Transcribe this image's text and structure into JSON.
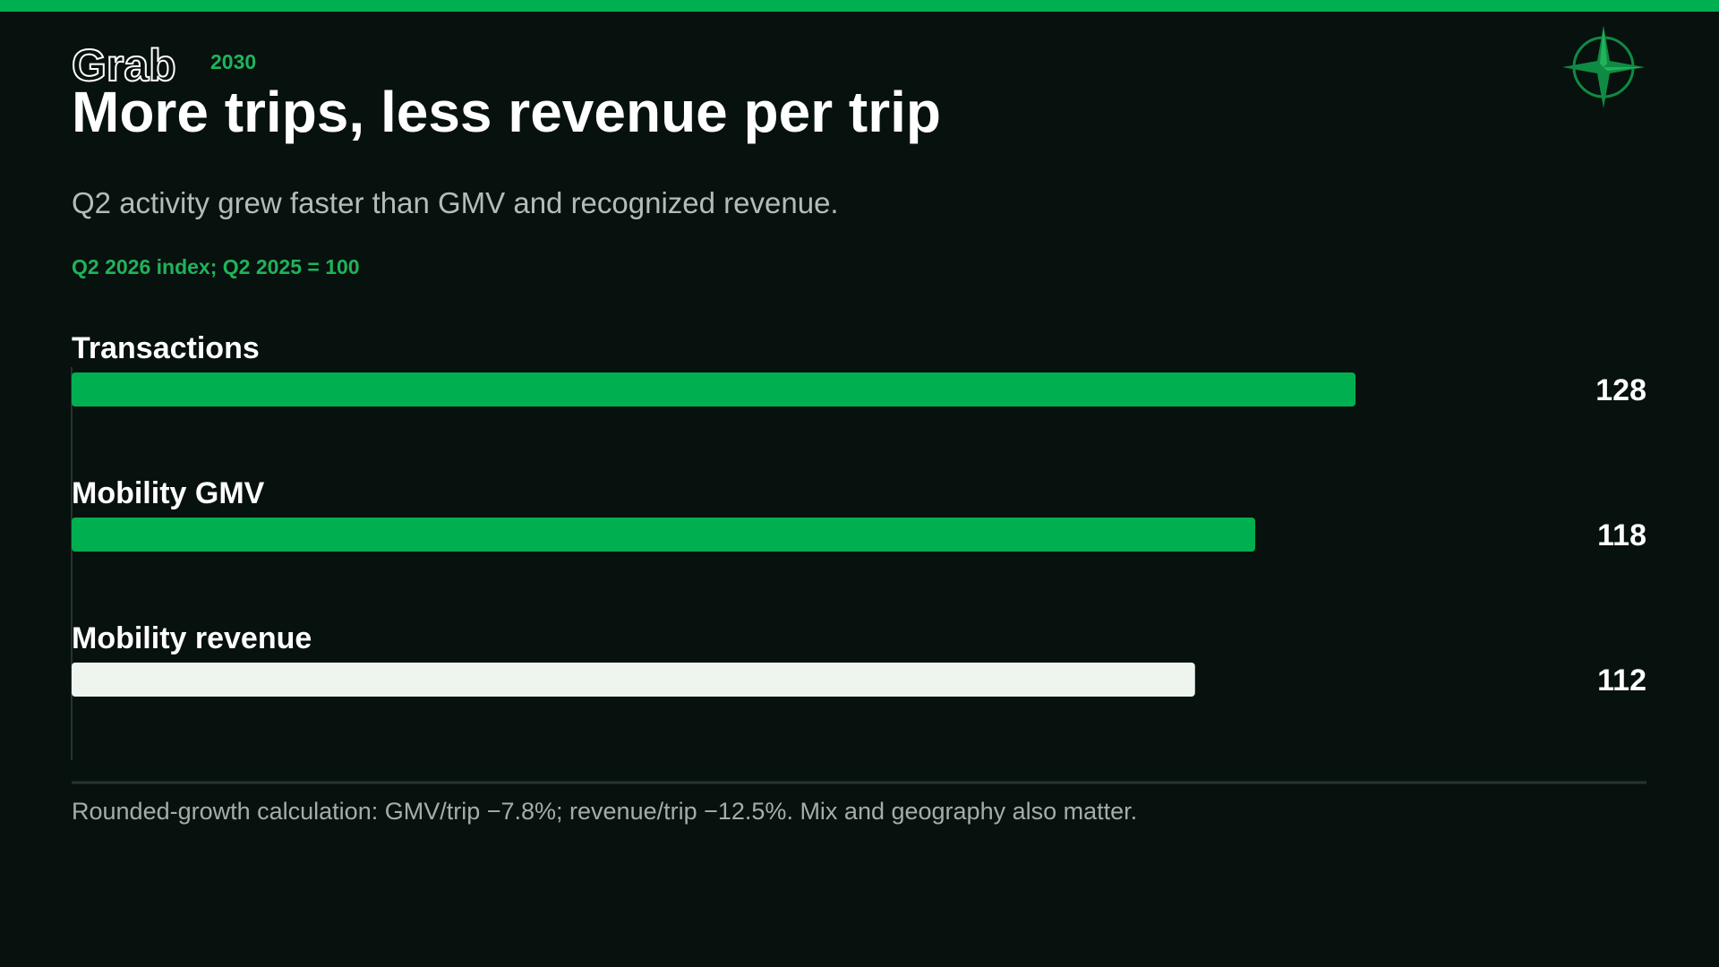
{
  "brand": "Grab",
  "year": "2030",
  "chart_data": {
    "type": "bar",
    "orientation": "horizontal",
    "title": "More trips, less revenue per trip",
    "subtitle": "Q2 activity grew faster than GMV and recognized revenue.",
    "axis_note": "Q2 2026 index; Q2 2025 = 100",
    "categories": [
      "Transactions",
      "Mobility GMV",
      "Mobility revenue"
    ],
    "values": [
      128,
      118,
      112
    ],
    "colors": [
      "#00b050",
      "#00b050",
      "#eef5ef"
    ],
    "footnote": "Rounded-growth calculation: GMV/trip −7.8%; revenue/trip −12.5%. Mix and geography also matter."
  }
}
